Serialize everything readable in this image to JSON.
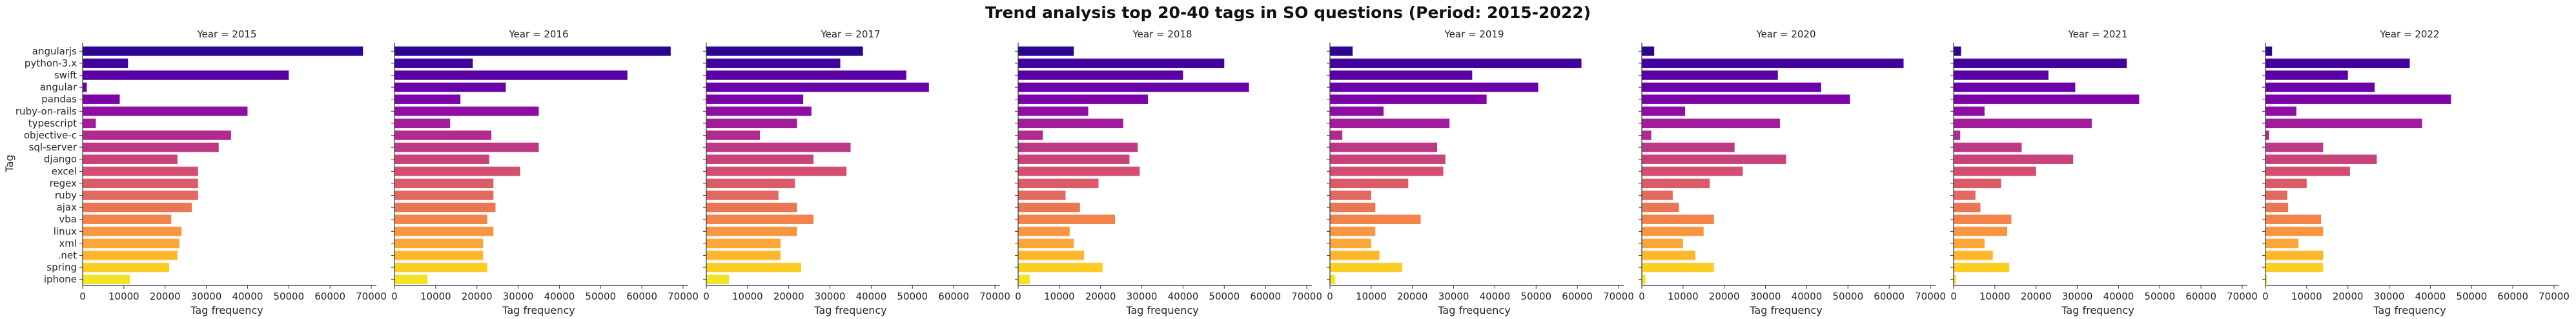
{
  "chart_data": {
    "type": "bar",
    "orientation": "horizontal",
    "title": "Trend analysis top 20-40 tags in SO questions (Period: 2015-2022)",
    "ylabel": "Tag",
    "xlabel": "Tag frequency",
    "xlim": [
      0,
      70000
    ],
    "xticks": [
      0,
      10000,
      20000,
      30000,
      40000,
      50000,
      60000,
      70000
    ],
    "palette": "plasma",
    "grid": false,
    "legend": "none",
    "categories": [
      "angularjs",
      "python-3.x",
      "swift",
      "angular",
      "pandas",
      "ruby-on-rails",
      "typescript",
      "objective-c",
      "sql-server",
      "django",
      "excel",
      "regex",
      "ruby",
      "ajax",
      "vba",
      "linux",
      "xml",
      ".net",
      "spring",
      "iphone"
    ],
    "colors": [
      "#2c0594",
      "#42039d",
      "#5a01a5",
      "#6a00a8",
      "#7e03a8",
      "#8f0da4",
      "#a11b9b",
      "#b12a90",
      "#bd3786",
      "#c8437b",
      "#d24f71",
      "#db5c68",
      "#e3685f",
      "#eb7655",
      "#f2844b",
      "#f89540",
      "#fca636",
      "#feb72d",
      "#fccd25",
      "#f1e427"
    ],
    "facets": [
      {
        "title": "Year = 2015",
        "values": [
          68000,
          11000,
          50000,
          1000,
          9000,
          40000,
          3200,
          36000,
          33000,
          23000,
          28000,
          28000,
          28000,
          26500,
          21500,
          24000,
          23500,
          23000,
          21000,
          11500
        ]
      },
      {
        "title": "Year = 2016",
        "values": [
          67000,
          19000,
          56500,
          27000,
          16000,
          35000,
          13500,
          23500,
          35000,
          23000,
          30500,
          24000,
          24000,
          24500,
          22500,
          24000,
          21500,
          21500,
          22500,
          8000
        ]
      },
      {
        "title": "Year = 2017",
        "values": [
          38000,
          32500,
          48500,
          54000,
          23500,
          25500,
          22000,
          13000,
          35000,
          26000,
          34000,
          21500,
          17500,
          22000,
          26000,
          22000,
          18000,
          18000,
          23000,
          5500
        ]
      },
      {
        "title": "Year = 2018",
        "values": [
          13500,
          50000,
          40000,
          56000,
          31500,
          17000,
          25500,
          6000,
          29000,
          27000,
          29500,
          19500,
          11500,
          15000,
          23500,
          12500,
          13500,
          16000,
          20500,
          2800
        ]
      },
      {
        "title": "Year = 2019",
        "values": [
          5500,
          61000,
          34500,
          50500,
          38000,
          13000,
          29000,
          3000,
          26000,
          28000,
          27500,
          19000,
          10000,
          11000,
          22000,
          11000,
          10000,
          12000,
          17500,
          1300
        ]
      },
      {
        "title": "Year = 2020",
        "values": [
          3000,
          63500,
          33000,
          43500,
          50500,
          10500,
          33500,
          2300,
          22500,
          35000,
          24500,
          16500,
          7500,
          9000,
          17500,
          15000,
          10000,
          13000,
          17500,
          900
        ]
      },
      {
        "title": "Year = 2021",
        "values": [
          1800,
          42000,
          23000,
          29500,
          45000,
          7500,
          33500,
          1600,
          16500,
          29000,
          20000,
          11500,
          5300,
          6500,
          14000,
          13000,
          7500,
          9500,
          13500,
          600
        ]
      },
      {
        "title": "Year = 2022",
        "values": [
          1600,
          35000,
          20000,
          26500,
          45000,
          7500,
          38000,
          900,
          14000,
          27000,
          20500,
          10000,
          5300,
          5500,
          13500,
          14000,
          8000,
          14000,
          14000,
          300
        ]
      }
    ]
  }
}
